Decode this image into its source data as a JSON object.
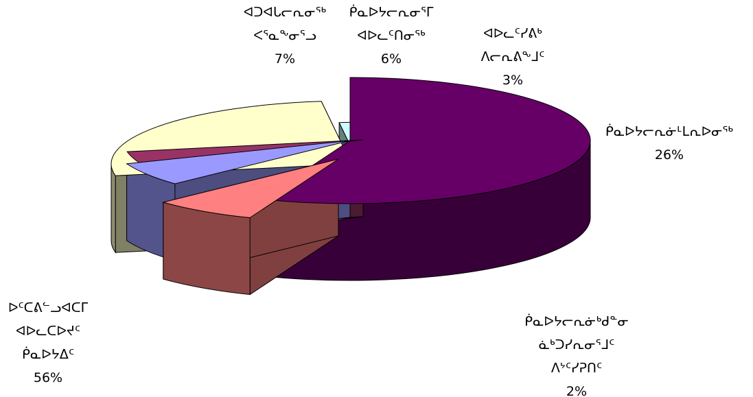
{
  "chart_data": {
    "type": "pie",
    "style": "3d-exploded",
    "slices": [
      {
        "label": [
          "ᐅᑦᑕᕕᓪᓗᐊᑕᒥ",
          "ᐊᐅᓚᑕᐅᔪᑦ",
          "ᑮᓇᐅᔭᐃᑦ"
        ],
        "value": 56,
        "value_label": "56%",
        "color": "#660066"
      },
      {
        "label": [
          "ᐊᑐᐊᒐᓕᕆᓂᖅ",
          "ᐸᕐᓇᖕᓂᕐᓗ"
        ],
        "value": 7,
        "value_label": "7%",
        "color": "#ff8080"
      },
      {
        "label": [
          "ᑮᓇᐅᔭᓕᕆᓂᕐᒥ",
          "ᐊᐅᓚᑦᑎᓂᖅ"
        ],
        "value": 6,
        "value_label": "6%",
        "color": "#9999ff"
      },
      {
        "label": [
          "ᐊᐅᓚᑦᓯᕕᒃ",
          "ᐱᓕᕆᕕᖕᒧᑦ"
        ],
        "value": 3,
        "value_label": "3%",
        "color": "#993366"
      },
      {
        "label": [
          "ᑮᓇᐅᔭᓕᕆᓃᒻᒪᕆᐅᓂᖅ"
        ],
        "value": 26,
        "value_label": "26%",
        "color": "#ffffcc"
      },
      {
        "label": [
          "ᑮᓇᐅᔭᓕᕆᓃᒃᑯᓐᓂ",
          "ᓈᒃᑐᓯᕆᓂᕐᒧᑦ",
          "ᐱᔾᑦᓯᕈᑎᑦ"
        ],
        "value": 2,
        "value_label": "2%",
        "color": "#ccffff"
      }
    ]
  }
}
